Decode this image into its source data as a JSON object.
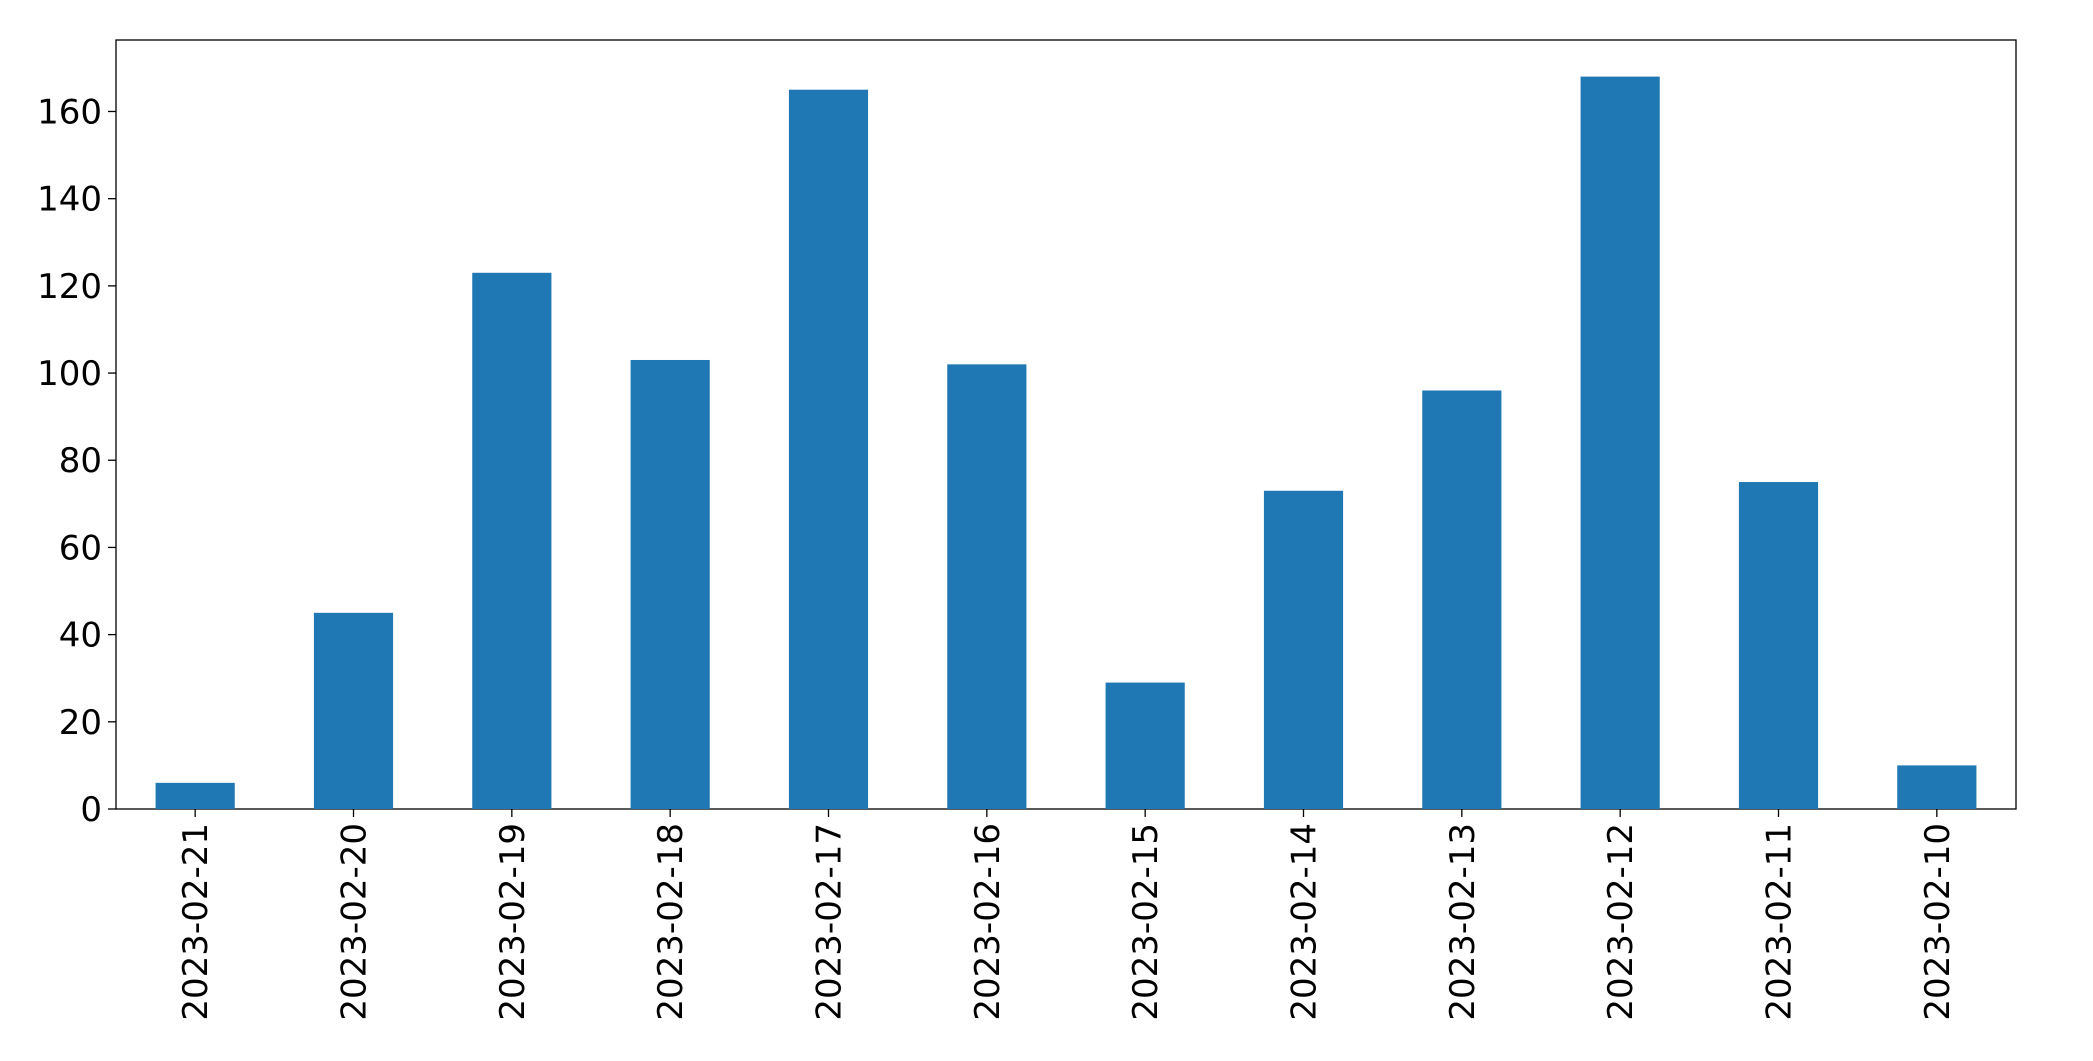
{
  "chart_data": {
    "type": "bar",
    "categories": [
      "2023-02-21",
      "2023-02-20",
      "2023-02-19",
      "2023-02-18",
      "2023-02-17",
      "2023-02-16",
      "2023-02-15",
      "2023-02-14",
      "2023-02-13",
      "2023-02-12",
      "2023-02-11",
      "2023-02-10"
    ],
    "values": [
      6,
      45,
      123,
      103,
      165,
      102,
      29,
      73,
      96,
      168,
      75,
      10
    ],
    "color": "#1f77b4",
    "ylim": [
      0,
      176.4
    ],
    "yticks": [
      0,
      20,
      40,
      60,
      80,
      100,
      120,
      140,
      160
    ],
    "grid": false
  }
}
